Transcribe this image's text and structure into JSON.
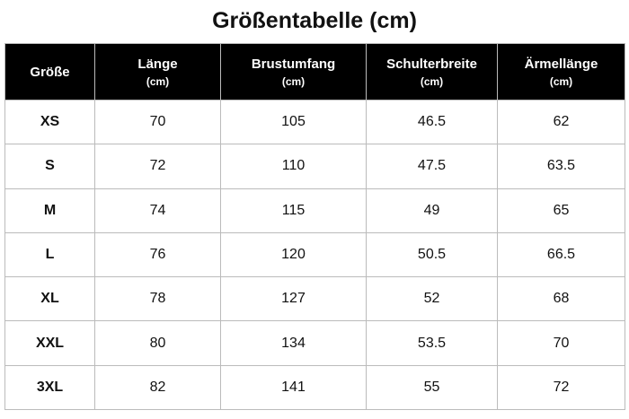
{
  "title": "Größentabelle (cm)",
  "table": {
    "columns": [
      {
        "label": "Größe"
      },
      {
        "label": "Länge",
        "unit": "(cm)"
      },
      {
        "label": "Brustumfang",
        "unit": "(cm)"
      },
      {
        "label": "Schulterbreite",
        "unit": "(cm)"
      },
      {
        "label": "Ärmellänge",
        "unit": "(cm)"
      }
    ],
    "rows": [
      [
        "XS",
        70,
        105,
        46.5,
        62
      ],
      [
        "S",
        72,
        110,
        47.5,
        63.5
      ],
      [
        "M",
        74,
        115,
        49,
        65
      ],
      [
        "L",
        76,
        120,
        50.5,
        66.5
      ],
      [
        "XL",
        78,
        127,
        52,
        68
      ],
      [
        "XXL",
        80,
        134,
        53.5,
        70
      ],
      [
        "3XL",
        82,
        141,
        55,
        72
      ]
    ]
  }
}
